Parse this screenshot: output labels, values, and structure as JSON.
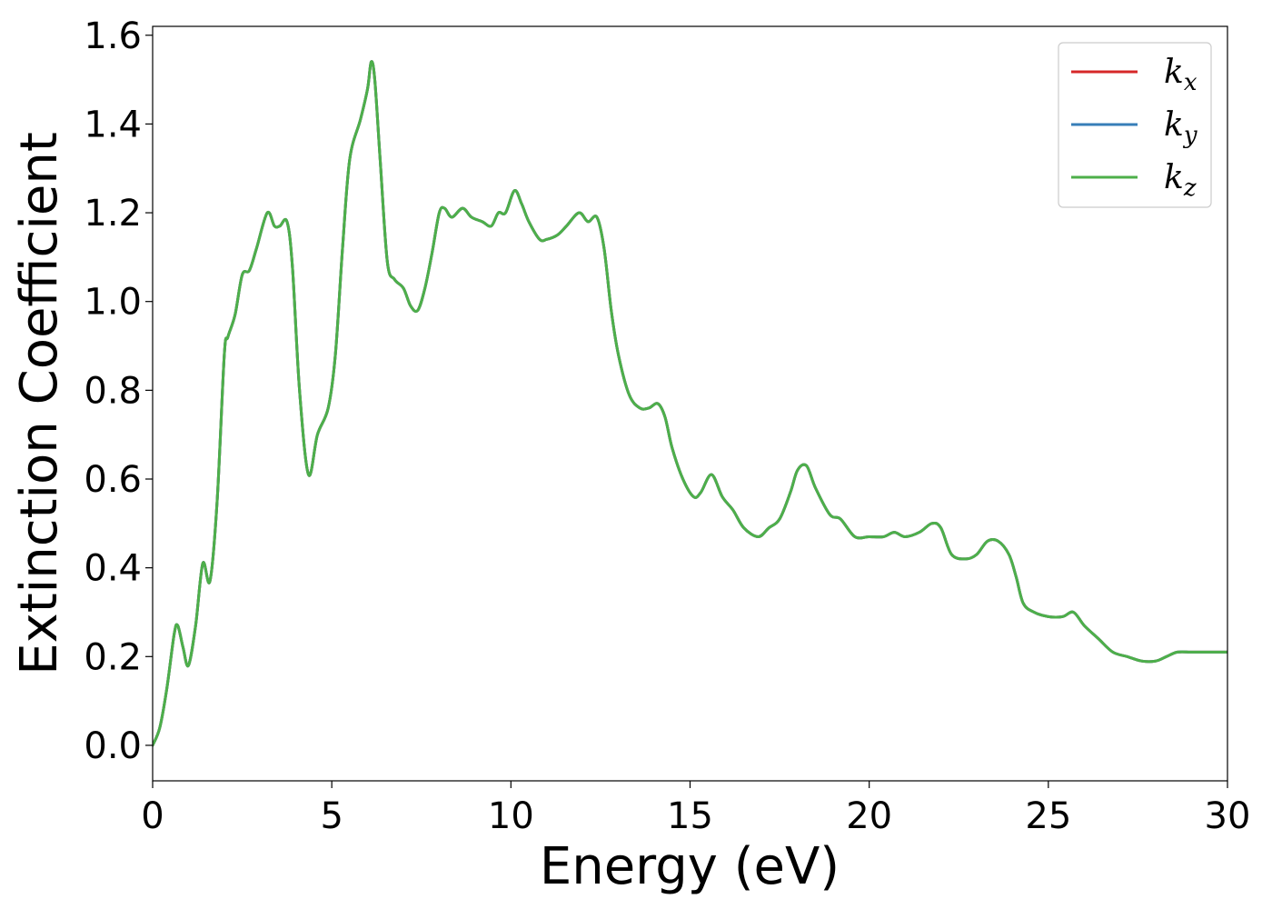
{
  "chart_data": {
    "type": "line",
    "title": "",
    "xlabel": "Energy (eV)",
    "ylabel": "Extinction Coefficient",
    "xlim": [
      0,
      30
    ],
    "ylim": [
      -0.08,
      1.62
    ],
    "xticks": [
      0,
      5,
      10,
      15,
      20,
      25,
      30
    ],
    "xtick_labels": [
      "0",
      "5",
      "10",
      "15",
      "20",
      "25",
      "30"
    ],
    "yticks": [
      0.0,
      0.2,
      0.4,
      0.6,
      0.8,
      1.0,
      1.2,
      1.4,
      1.6
    ],
    "ytick_labels": [
      "0.0",
      "0.2",
      "0.4",
      "0.6",
      "0.8",
      "1.0",
      "1.2",
      "1.4",
      "1.6"
    ],
    "grid": false,
    "legend_position": "top-right",
    "x": [
      0,
      0.2,
      0.4,
      0.6,
      0.7,
      0.85,
      1.0,
      1.2,
      1.4,
      1.6,
      1.8,
      2.0,
      2.1,
      2.3,
      2.5,
      2.7,
      2.9,
      3.2,
      3.4,
      3.55,
      3.75,
      3.9,
      4.1,
      4.35,
      4.6,
      4.9,
      5.1,
      5.3,
      5.5,
      5.8,
      6.0,
      6.1,
      6.2,
      6.35,
      6.55,
      6.75,
      7.0,
      7.2,
      7.4,
      7.6,
      7.8,
      8.0,
      8.15,
      8.35,
      8.65,
      8.9,
      9.2,
      9.45,
      9.65,
      9.85,
      10.1,
      10.3,
      10.5,
      10.8,
      11.0,
      11.3,
      11.55,
      11.9,
      12.15,
      12.4,
      12.6,
      12.8,
      13.0,
      13.3,
      13.6,
      13.85,
      14.1,
      14.3,
      14.5,
      14.8,
      15.1,
      15.3,
      15.6,
      15.9,
      16.2,
      16.5,
      16.9,
      17.2,
      17.5,
      17.8,
      18.0,
      18.25,
      18.5,
      18.9,
      19.2,
      19.6,
      20.0,
      20.4,
      20.7,
      21.0,
      21.4,
      21.75,
      22.0,
      22.3,
      22.7,
      23.0,
      23.3,
      23.6,
      23.9,
      24.1,
      24.3,
      24.6,
      25.0,
      25.4,
      25.7,
      26.0,
      26.4,
      26.8,
      27.2,
      27.6,
      28.0,
      28.3,
      28.6,
      29.0,
      29.4,
      29.7,
      30.0
    ],
    "series": [
      {
        "name": "k_x",
        "color": "#d62728",
        "y": [
          0.0,
          0.04,
          0.13,
          0.25,
          0.27,
          0.22,
          0.18,
          0.27,
          0.41,
          0.37,
          0.55,
          0.88,
          0.92,
          0.97,
          1.06,
          1.07,
          1.12,
          1.2,
          1.17,
          1.17,
          1.18,
          1.08,
          0.8,
          0.61,
          0.7,
          0.76,
          0.88,
          1.12,
          1.32,
          1.41,
          1.48,
          1.54,
          1.5,
          1.32,
          1.09,
          1.05,
          1.03,
          0.99,
          0.98,
          1.03,
          1.11,
          1.2,
          1.21,
          1.19,
          1.21,
          1.19,
          1.18,
          1.17,
          1.2,
          1.2,
          1.25,
          1.22,
          1.18,
          1.14,
          1.14,
          1.15,
          1.17,
          1.2,
          1.18,
          1.19,
          1.12,
          0.98,
          0.88,
          0.79,
          0.76,
          0.76,
          0.77,
          0.74,
          0.67,
          0.6,
          0.56,
          0.57,
          0.61,
          0.56,
          0.53,
          0.49,
          0.47,
          0.49,
          0.51,
          0.57,
          0.62,
          0.63,
          0.58,
          0.52,
          0.51,
          0.47,
          0.47,
          0.47,
          0.48,
          0.47,
          0.48,
          0.5,
          0.49,
          0.43,
          0.42,
          0.43,
          0.46,
          0.46,
          0.43,
          0.38,
          0.32,
          0.3,
          0.29,
          0.29,
          0.3,
          0.27,
          0.24,
          0.21,
          0.2,
          0.19,
          0.19,
          0.2,
          0.21,
          0.21,
          0.21,
          0.21,
          0.21
        ]
      },
      {
        "name": "k_y",
        "color": "#377eb8",
        "y": [
          0.0,
          0.04,
          0.13,
          0.25,
          0.27,
          0.22,
          0.18,
          0.27,
          0.41,
          0.37,
          0.55,
          0.88,
          0.92,
          0.97,
          1.06,
          1.07,
          1.12,
          1.2,
          1.17,
          1.17,
          1.18,
          1.08,
          0.8,
          0.61,
          0.7,
          0.76,
          0.88,
          1.12,
          1.32,
          1.41,
          1.48,
          1.54,
          1.5,
          1.32,
          1.09,
          1.05,
          1.03,
          0.99,
          0.98,
          1.03,
          1.11,
          1.2,
          1.21,
          1.19,
          1.21,
          1.19,
          1.18,
          1.17,
          1.2,
          1.2,
          1.25,
          1.22,
          1.18,
          1.14,
          1.14,
          1.15,
          1.17,
          1.2,
          1.18,
          1.19,
          1.12,
          0.98,
          0.88,
          0.79,
          0.76,
          0.76,
          0.77,
          0.74,
          0.67,
          0.6,
          0.56,
          0.57,
          0.61,
          0.56,
          0.53,
          0.49,
          0.47,
          0.49,
          0.51,
          0.57,
          0.62,
          0.63,
          0.58,
          0.52,
          0.51,
          0.47,
          0.47,
          0.47,
          0.48,
          0.47,
          0.48,
          0.5,
          0.49,
          0.43,
          0.42,
          0.43,
          0.46,
          0.46,
          0.43,
          0.38,
          0.32,
          0.3,
          0.29,
          0.29,
          0.3,
          0.27,
          0.24,
          0.21,
          0.2,
          0.19,
          0.19,
          0.2,
          0.21,
          0.21,
          0.21,
          0.21,
          0.21
        ]
      },
      {
        "name": "k_z",
        "color": "#4daf4a",
        "y": [
          0.0,
          0.04,
          0.13,
          0.25,
          0.27,
          0.22,
          0.18,
          0.27,
          0.41,
          0.37,
          0.55,
          0.88,
          0.92,
          0.97,
          1.06,
          1.07,
          1.12,
          1.2,
          1.17,
          1.17,
          1.18,
          1.08,
          0.8,
          0.61,
          0.7,
          0.76,
          0.88,
          1.12,
          1.32,
          1.41,
          1.48,
          1.54,
          1.5,
          1.32,
          1.09,
          1.05,
          1.03,
          0.99,
          0.98,
          1.03,
          1.11,
          1.2,
          1.21,
          1.19,
          1.21,
          1.19,
          1.18,
          1.17,
          1.2,
          1.2,
          1.25,
          1.22,
          1.18,
          1.14,
          1.14,
          1.15,
          1.17,
          1.2,
          1.18,
          1.19,
          1.12,
          0.98,
          0.88,
          0.79,
          0.76,
          0.76,
          0.77,
          0.74,
          0.67,
          0.6,
          0.56,
          0.57,
          0.61,
          0.56,
          0.53,
          0.49,
          0.47,
          0.49,
          0.51,
          0.57,
          0.62,
          0.63,
          0.58,
          0.52,
          0.51,
          0.47,
          0.47,
          0.47,
          0.48,
          0.47,
          0.48,
          0.5,
          0.49,
          0.43,
          0.42,
          0.43,
          0.46,
          0.46,
          0.43,
          0.38,
          0.32,
          0.3,
          0.29,
          0.29,
          0.3,
          0.27,
          0.24,
          0.21,
          0.2,
          0.19,
          0.19,
          0.2,
          0.21,
          0.21,
          0.21,
          0.21,
          0.21
        ]
      }
    ],
    "legend": [
      {
        "base": "k",
        "sub": "x",
        "color": "#d62728"
      },
      {
        "base": "k",
        "sub": "y",
        "color": "#377eb8"
      },
      {
        "base": "k",
        "sub": "z",
        "color": "#4daf4a"
      }
    ]
  }
}
